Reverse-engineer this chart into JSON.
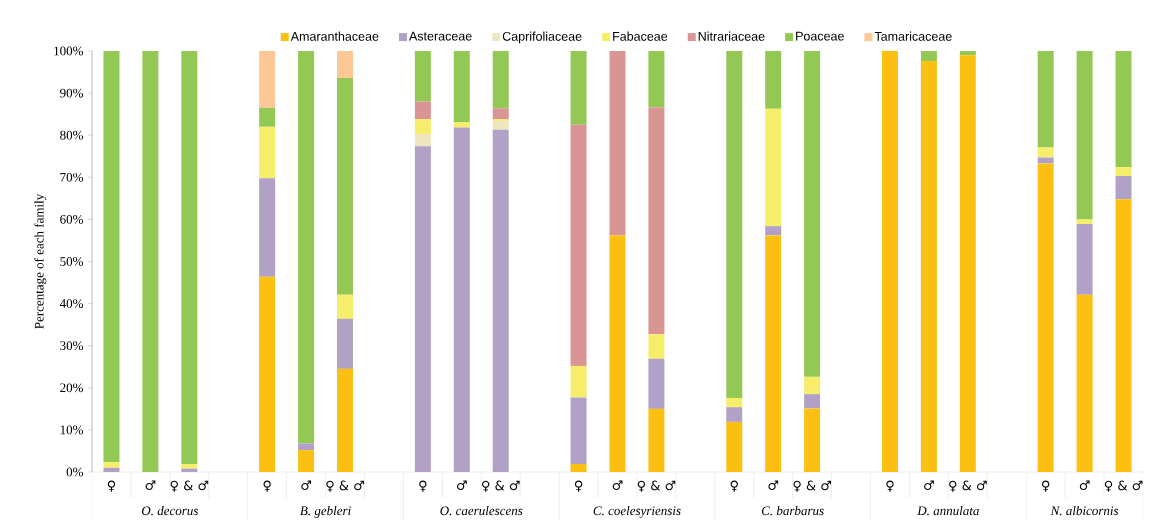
{
  "chart_data": {
    "type": "bar",
    "stacked": true,
    "ylabel": "Percentage of each family",
    "legend": "top",
    "categories": [
      "♀",
      "♂",
      "♀ & ♂",
      null,
      "♀",
      "♂",
      "♀ & ♂",
      null,
      "♀",
      "♂",
      "♀ & ♂",
      null,
      "♀",
      "♂",
      "♀ & ♂",
      null,
      "♀",
      "♂",
      "♀ & ♂",
      null,
      "♀",
      "♂",
      "♀ & ♂",
      null,
      "♀",
      "♂",
      "♀ & ♂"
    ],
    "annotations": [
      "O. decorus",
      "B. gebleri",
      "O. caerulescens",
      "C. coelesyriensis",
      "C. barbarus",
      "D. annulata",
      "N. albicornis"
    ],
    "ylim": [
      0,
      100
    ],
    "yticks": [
      {
        "value": 0,
        "label": "0%"
      },
      {
        "value": 10,
        "label": "10%"
      },
      {
        "value": 20,
        "label": "20%"
      },
      {
        "value": 30,
        "label": "30%"
      },
      {
        "value": 40,
        "label": "40%"
      },
      {
        "value": 50,
        "label": "50%"
      },
      {
        "value": 60,
        "label": "60%"
      },
      {
        "value": 70,
        "label": "70%"
      },
      {
        "value": 80,
        "label": "80%"
      },
      {
        "value": 90,
        "label": "90%"
      },
      {
        "value": 100,
        "label": "100%"
      }
    ],
    "series": [
      {
        "name": "Amaranthaceae",
        "color": "#fbc012",
        "values": [
          0,
          0,
          0,
          null,
          46.4,
          5.2,
          24.5,
          null,
          0,
          0,
          0,
          null,
          1.9,
          56.2,
          15.0,
          null,
          11.9,
          56.2,
          15.1,
          null,
          100,
          97.6,
          99.0,
          null,
          73.3,
          42.1,
          64.8
        ]
      },
      {
        "name": "Asteraceae",
        "color": "#b2a1c7",
        "values": [
          1.0,
          0,
          0.8,
          null,
          23.4,
          1.6,
          11.9,
          null,
          77.4,
          81.8,
          81.3,
          null,
          15.8,
          0,
          11.9,
          null,
          3.5,
          2.2,
          3.4,
          null,
          0,
          0,
          0,
          null,
          1.4,
          16.8,
          5.5
        ]
      },
      {
        "name": "Caprifoliaceae",
        "color": "#eee6bf",
        "values": [
          0,
          0,
          0,
          null,
          0,
          0,
          0,
          null,
          2.9,
          0,
          2.1,
          null,
          0,
          0,
          0,
          null,
          0,
          0,
          0,
          null,
          0,
          0,
          0,
          null,
          0,
          0,
          0
        ]
      },
      {
        "name": "Fabaceae",
        "color": "#f6ee6a",
        "values": [
          1.3,
          0,
          1.1,
          null,
          12.2,
          0,
          5.7,
          null,
          3.5,
          1.3,
          0.4,
          null,
          7.5,
          0,
          5.8,
          null,
          2.2,
          27.9,
          4.1,
          null,
          0,
          0,
          0,
          null,
          2.4,
          1.1,
          2.1
        ]
      },
      {
        "name": "Nitrariaceae",
        "color": "#d99594",
        "values": [
          0,
          0,
          0,
          null,
          0,
          0,
          0,
          null,
          4.2,
          0,
          2.6,
          null,
          57.3,
          43.8,
          53.9,
          null,
          0,
          0,
          0,
          null,
          0,
          0,
          0,
          null,
          0,
          0,
          0
        ]
      },
      {
        "name": "Poaceae",
        "color": "#92c853",
        "values": [
          97.7,
          100,
          98.1,
          null,
          4.5,
          93.2,
          51.5,
          null,
          12.0,
          16.9,
          13.6,
          null,
          17.5,
          0,
          13.4,
          null,
          82.4,
          13.7,
          77.4,
          null,
          0,
          2.4,
          1.0,
          null,
          22.9,
          40.0,
          27.6
        ]
      },
      {
        "name": "Tamaricaceae",
        "color": "#fdc896",
        "values": [
          0,
          0,
          0,
          null,
          13.5,
          0,
          6.4,
          null,
          0,
          0,
          0,
          null,
          0,
          0,
          0,
          null,
          0,
          0,
          0,
          null,
          0,
          0,
          0,
          null,
          0,
          0,
          0
        ]
      }
    ]
  }
}
